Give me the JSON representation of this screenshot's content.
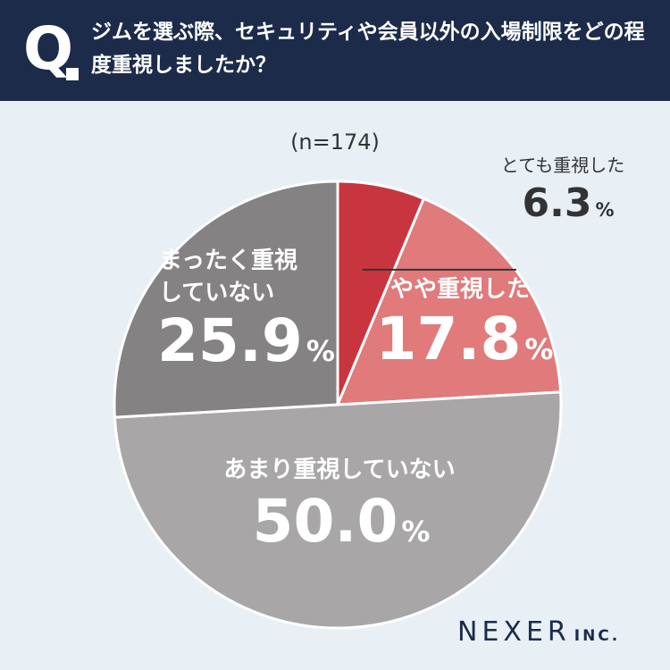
{
  "header": {
    "q_mark": "Q",
    "question": "ジムを選ぶ際、セキュリティや会員以外の入場制限をどの程度重視しましたか？"
  },
  "chart_data": {
    "type": "pie",
    "sample_label": "(n=174)",
    "percent_sign": "%",
    "slices": [
      {
        "label": "とても重視した",
        "value": 6.3,
        "value_text": "6.3",
        "color": "#c9353e"
      },
      {
        "label": "やや重視した",
        "value": 17.8,
        "value_text": "17.8",
        "color": "#e07a7b"
      },
      {
        "label": "あまり重視していない",
        "value": 50.0,
        "value_text": "50.0",
        "color": "#a8a6a7"
      },
      {
        "label": "まったく重視していない",
        "value": 25.9,
        "value_text": "25.9",
        "color": "#858283"
      }
    ]
  },
  "logo": {
    "main": "NEXER",
    "sub": "INC."
  }
}
